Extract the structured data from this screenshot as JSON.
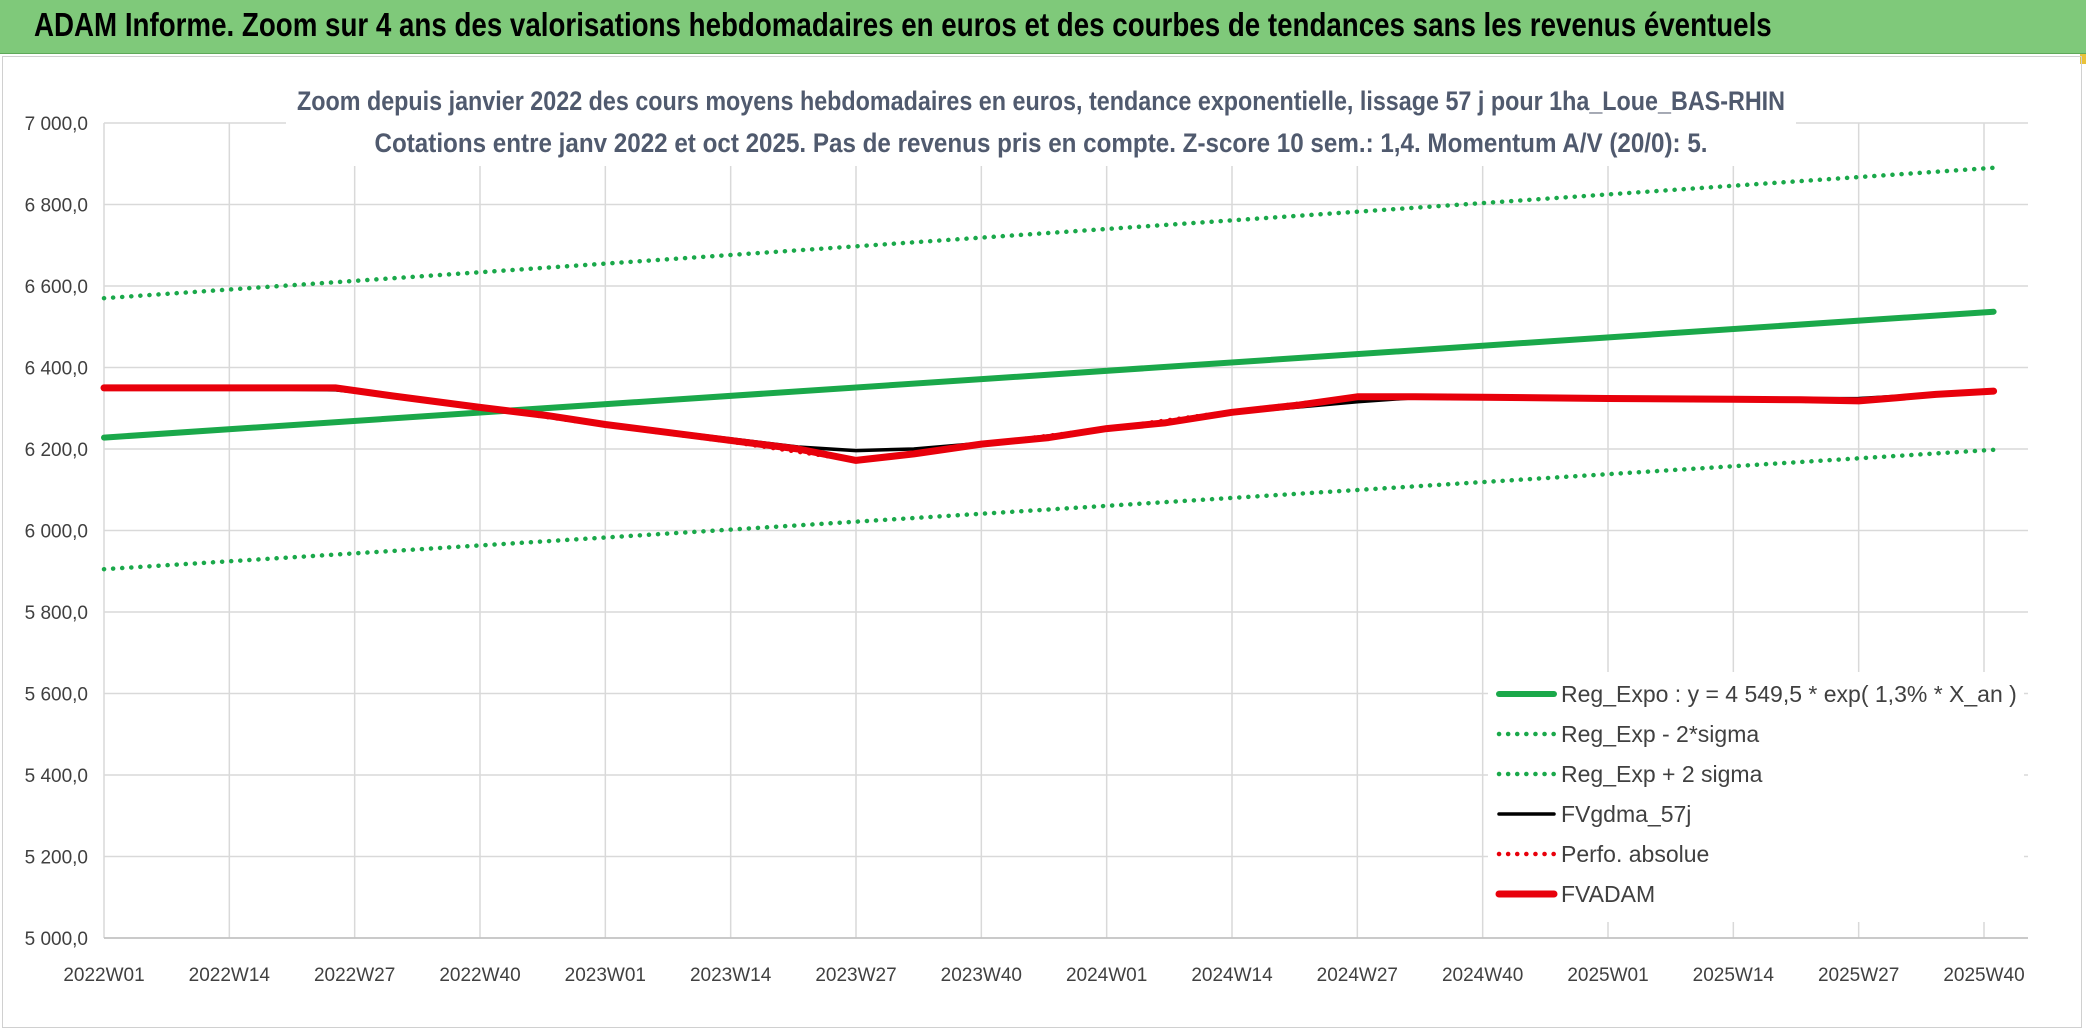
{
  "banner": {
    "title": "ADAM Informe. Zoom sur 4 ans des valorisations hebdomadaires en euros et des courbes de tendances sans les revenus éventuels"
  },
  "chart_data": {
    "type": "line",
    "title": "Zoom depuis janvier 2022 des cours moyens hebdomadaires en euros, tendance exponentielle, lissage 57 j pour 1ha_Loue_BAS-RHIN",
    "subtitle": "Cotations entre janv 2022 et oct 2025. Pas de revenus pris en compte. Z-score 10 sem.: 1,4. Momentum A/V (20/0): 5.",
    "xlabel": "",
    "ylabel": "",
    "ylim": [
      5000,
      7000
    ],
    "ytick_values": [
      5000,
      5200,
      5400,
      5600,
      5800,
      6000,
      6200,
      6400,
      6600,
      6800,
      7000
    ],
    "ytick_labels": [
      "5 000,0",
      "5 200,0",
      "5 400,0",
      "5 600,0",
      "5 800,0",
      "6 000,0",
      "6 200,0",
      "6 400,0",
      "6 600,0",
      "6 800,0",
      "7 000,0"
    ],
    "x_weeks": 197,
    "xtick_index": [
      0,
      13,
      26,
      39,
      52,
      65,
      78,
      91,
      104,
      117,
      130,
      143,
      156,
      169,
      182,
      195
    ],
    "xtick_labels": [
      "2022W01",
      "2022W14",
      "2022W27",
      "2022W40",
      "2023W01",
      "2023W14",
      "2023W27",
      "2023W40",
      "2024W01",
      "2024W14",
      "2024W27",
      "2024W40",
      "2025W01",
      "2025W14",
      "2025W27",
      "2025W40"
    ],
    "grid": true,
    "legend_position": "bottom-right",
    "series": [
      {
        "name": "Reg_Expo : y = 4 549,5 * exp( 1,3% *  X_an )",
        "color": "#1aa84a",
        "style": "solid-thick",
        "points": [
          [
            0,
            6228
          ],
          [
            196,
            6537
          ]
        ]
      },
      {
        "name": "Reg_Exp - 2*sigma",
        "color": "#1aa84a",
        "style": "dotted",
        "points": [
          [
            0,
            5905
          ],
          [
            196,
            6198
          ]
        ]
      },
      {
        "name": "Reg_Exp + 2 sigma",
        "color": "#1aa84a",
        "style": "dotted",
        "points": [
          [
            0,
            6570
          ],
          [
            196,
            6890
          ]
        ]
      },
      {
        "name": "FVgdma_57j",
        "color": "#000000",
        "style": "solid",
        "points": [
          [
            0,
            6350
          ],
          [
            10,
            6350
          ],
          [
            24,
            6345
          ],
          [
            32,
            6325
          ],
          [
            39,
            6305
          ],
          [
            52,
            6262
          ],
          [
            66,
            6222
          ],
          [
            72,
            6205
          ],
          [
            78,
            6196
          ],
          [
            84,
            6200
          ],
          [
            91,
            6214
          ],
          [
            104,
            6248
          ],
          [
            117,
            6288
          ],
          [
            130,
            6316
          ],
          [
            136,
            6326
          ],
          [
            143,
            6327
          ],
          [
            156,
            6325
          ],
          [
            169,
            6323
          ],
          [
            182,
            6324
          ],
          [
            190,
            6335
          ],
          [
            196,
            6343
          ]
        ]
      },
      {
        "name": "Perfo. absolue",
        "color": "#e8000b",
        "style": "dotted",
        "points": [
          [
            0,
            6350
          ],
          [
            24,
            6352
          ],
          [
            39,
            6302
          ],
          [
            52,
            6258
          ],
          [
            65,
            6218
          ],
          [
            78,
            6172
          ],
          [
            91,
            6212
          ],
          [
            104,
            6250
          ],
          [
            117,
            6292
          ],
          [
            130,
            6328
          ],
          [
            143,
            6326
          ],
          [
            156,
            6323
          ],
          [
            169,
            6321
          ],
          [
            182,
            6316
          ],
          [
            190,
            6335
          ],
          [
            196,
            6342
          ]
        ]
      },
      {
        "name": "FVADAM",
        "color": "#e8000b",
        "style": "solid-thick",
        "points": [
          [
            0,
            6350
          ],
          [
            10,
            6350
          ],
          [
            24,
            6350
          ],
          [
            30,
            6330
          ],
          [
            39,
            6302
          ],
          [
            46,
            6282
          ],
          [
            52,
            6260
          ],
          [
            60,
            6236
          ],
          [
            66,
            6218
          ],
          [
            72,
            6200
          ],
          [
            78,
            6172
          ],
          [
            84,
            6188
          ],
          [
            91,
            6212
          ],
          [
            98,
            6228
          ],
          [
            104,
            6250
          ],
          [
            110,
            6264
          ],
          [
            117,
            6290
          ],
          [
            124,
            6308
          ],
          [
            130,
            6328
          ],
          [
            136,
            6328
          ],
          [
            143,
            6327
          ],
          [
            156,
            6324
          ],
          [
            169,
            6322
          ],
          [
            176,
            6321
          ],
          [
            182,
            6318
          ],
          [
            186,
            6326
          ],
          [
            190,
            6334
          ],
          [
            196,
            6342
          ]
        ]
      }
    ]
  }
}
